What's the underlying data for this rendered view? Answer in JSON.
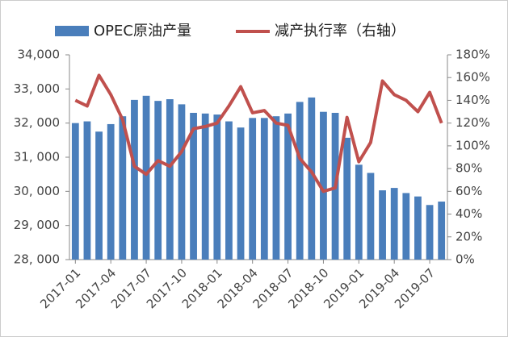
{
  "chart_data": {
    "type": "bar_line",
    "categories": [
      "2017-01",
      null,
      null,
      "2017-04",
      null,
      null,
      "2017-07",
      null,
      null,
      "2017-10",
      null,
      null,
      "2018-01",
      null,
      null,
      "2018-04",
      null,
      null,
      "2018-07",
      null,
      null,
      "2018-10",
      null,
      null,
      "2019-01",
      null,
      null,
      "2019-04",
      null,
      null,
      "2019-07",
      null
    ],
    "series": [
      {
        "name": "OPEC原油产量",
        "color": "#4a7ebb",
        "type": "bar",
        "values": [
          32000,
          32050,
          31750,
          31970,
          32200,
          32680,
          32800,
          32650,
          32700,
          32550,
          32300,
          32280,
          32250,
          32050,
          31870,
          32150,
          32150,
          32200,
          32280,
          32620,
          32750,
          32330,
          32300,
          31570,
          30780,
          30540,
          30030,
          30100,
          29950,
          29850,
          29600,
          29700
        ]
      },
      {
        "name": "减产执行率（右轴）",
        "color": "#c0504d",
        "type": "line",
        "axis": "y2",
        "values": [
          140,
          135,
          162,
          145,
          123,
          82,
          75,
          87,
          82,
          95,
          115,
          117,
          120,
          135,
          152,
          129,
          131,
          120,
          118,
          89,
          77,
          60,
          63,
          125,
          86,
          103,
          157,
          145,
          140,
          130,
          147,
          120
        ]
      }
    ],
    "ylim": [
      28000,
      34000
    ],
    "yticks": [
      {
        "value": 28000,
        "label": "28, 000"
      },
      {
        "value": 29000,
        "label": "29, 000"
      },
      {
        "value": 30000,
        "label": "30, 000"
      },
      {
        "value": 31000,
        "label": "31, 000"
      },
      {
        "value": 32000,
        "label": "32, 000"
      },
      {
        "value": 33000,
        "label": "33, 000"
      },
      {
        "value": 34000,
        "label": "34,000"
      }
    ],
    "y2lim": [
      0,
      180
    ],
    "y2ticks": [
      {
        "value": 0,
        "label": "0%"
      },
      {
        "value": 20,
        "label": "20%"
      },
      {
        "value": 40,
        "label": "40%"
      },
      {
        "value": 60,
        "label": "60%"
      },
      {
        "value": 80,
        "label": "80%"
      },
      {
        "value": 100,
        "label": "100%"
      },
      {
        "value": 120,
        "label": "120%"
      },
      {
        "value": 140,
        "label": "140%"
      },
      {
        "value": 160,
        "label": "160%"
      },
      {
        "value": 180,
        "label": "180%"
      }
    ]
  }
}
